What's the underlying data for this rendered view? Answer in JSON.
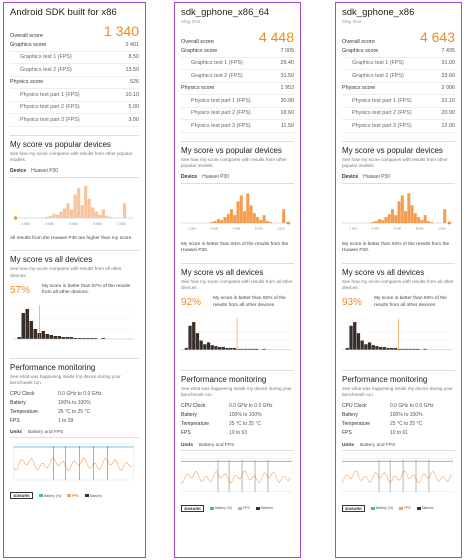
{
  "colors": {
    "accent": "#f28a1e",
    "frame": "#a64ac9",
    "fps_line": "#f7a25a",
    "battery_line": "#3cb9c6"
  },
  "panels": [
    {
      "title": "Android SDK built for x86",
      "subtitle": "",
      "overall_label": "Overall score",
      "overall_value": "1 340",
      "graphics_label": "Graphics score",
      "graphics_value": "2 401",
      "gt1_label": "Graphics test 1 (FPS)",
      "gt1_value": "8.50",
      "gt2_label": "Graphics test 2 (FPS)",
      "gt2_value": "13.50",
      "physics_label": "Physics score",
      "physics_value": "526",
      "pt1_label": "Physics test part 1 (FPS)",
      "pt1_value": "10.10",
      "pt2_label": "Physics test part 2 (FPS)",
      "pt2_value": "5.00",
      "pt3_label": "Physics test part 3 (FPS)",
      "pt3_value": "3.00",
      "popular_title": "My score vs popular devices",
      "popular_desc": "See how my score compares with results from other popular models.",
      "device_key": "Device",
      "device_val": "Huawei P30",
      "popular_note": "All results from the Huawei P30 are higher than my score.",
      "popular_ticks": [
        "2 000",
        "4 000",
        "6 000",
        "8 000",
        "1 000"
      ],
      "all_title": "My score vs all devices",
      "all_desc": "See how my score compares with results from all other devices.",
      "all_pct": "57%",
      "all_text": "My score is better than 57% of the results from all other devices.",
      "perf_title": "Performance monitoring",
      "perf_desc": "See what was happening inside my device during your benchmark run.",
      "cpu_k": "CPU Clock",
      "cpu_v": "0.0 GHz to 0.0 GHz",
      "bat_k": "Battery",
      "bat_v": "100% to 100%",
      "temp_k": "Temperature",
      "temp_v": "25 °C to 25 °C",
      "fps_k": "FPS",
      "fps_v": "1 to 39",
      "units_k": "Units",
      "units_v": "Battery and FPS",
      "legend": [
        "Battery (%)",
        "FPS",
        "Markers"
      ],
      "logo": "3DMARK"
    },
    {
      "title": "sdk_gphone_x86_64",
      "subtitle": "Sling Shot",
      "overall_label": "Overall score",
      "overall_value": "4 448",
      "graphics_label": "Graphics score",
      "graphics_value": "7 005",
      "gt1_label": "Graphics test 1 (FPS)",
      "gt1_value": "29.40",
      "gt2_label": "Graphics test 2 (FPS)",
      "gt2_value": "31.50",
      "physics_label": "Physics score",
      "physics_value": "1 953",
      "pt1_label": "Physics test part 1 (FPS)",
      "pt1_value": "30.90",
      "pt2_label": "Physics test part 2 (FPS)",
      "pt2_value": "19.60",
      "pt3_label": "Physics test part 3 (FPS)",
      "pt3_value": "11.50",
      "popular_title": "My score vs popular devices",
      "popular_desc": "See how my score compares with results from other popular models.",
      "device_key": "Device",
      "device_val": "Huawei P30",
      "popular_note": "My score is better than 94% of the results from the Huawei P30.",
      "popular_ticks": [
        "2 000",
        "4 000",
        "6 000",
        "8 000",
        "1 000"
      ],
      "all_title": "My score vs all devices",
      "all_desc": "See how my score compares with results from all other devices.",
      "all_pct": "92%",
      "all_text": "My score is better than 92% of the results from all other devices.",
      "perf_title": "Performance monitoring",
      "perf_desc": "See what was happening inside my device during your benchmark run.",
      "cpu_k": "CPU Clock",
      "cpu_v": "0.0 GHz to 0.0 GHz",
      "bat_k": "Battery",
      "bat_v": "100% to 100%",
      "temp_k": "Temperature",
      "temp_v": "25 °C to 25 °C",
      "fps_k": "FPS",
      "fps_v": "10 to 63",
      "units_k": "Units",
      "units_v": "Battery and FPS",
      "legend": [
        "Battery (%)",
        "FPS",
        "Markers"
      ],
      "logo": "3DMARK"
    },
    {
      "title": "sdk_gphone_x86",
      "subtitle": "Sling Shot",
      "overall_label": "Overall score",
      "overall_value": "4 643",
      "graphics_label": "Graphics score",
      "graphics_value": "7 435",
      "gt1_label": "Graphics test 1 (FPS)",
      "gt1_value": "31.00",
      "gt2_label": "Graphics test 2 (FPS)",
      "gt2_value": "33.60",
      "physics_label": "Physics score",
      "physics_value": "2 006",
      "pt1_label": "Physics test part 1 (FPS)",
      "pt1_value": "31.10",
      "pt2_label": "Physics test part 2 (FPS)",
      "pt2_value": "20.90",
      "pt3_label": "Physics test part 3 (FPS)",
      "pt3_value": "12.00",
      "popular_title": "My score vs popular devices",
      "popular_desc": "See how my score compares with results from other popular models.",
      "device_key": "Device",
      "device_val": "Huawei P30",
      "popular_note": "My score is better than 94% of the results from the Huawei P30.",
      "popular_ticks": [
        "2 000",
        "4 000",
        "6 000",
        "8 000",
        "1 000"
      ],
      "all_title": "My score vs all devices",
      "all_desc": "See how my score compares with results from all other devices.",
      "all_pct": "93%",
      "all_text": "My score is better than 93% of the results from all other devices.",
      "perf_title": "Performance monitoring",
      "perf_desc": "See what was happening inside my device during your benchmark run.",
      "cpu_k": "CPU Clock",
      "cpu_v": "0.0 GHz to 0.0 GHz",
      "bat_k": "Battery",
      "bat_v": "100% to 100%",
      "temp_k": "Temperature",
      "temp_v": "25 °C to 25 °C",
      "fps_k": "FPS",
      "fps_v": "10 to 61",
      "units_k": "Units",
      "units_v": "Battery and FPS",
      "legend": [
        "Battery (%)",
        "FPS",
        "Markers"
      ],
      "logo": "3DMARK"
    }
  ]
}
